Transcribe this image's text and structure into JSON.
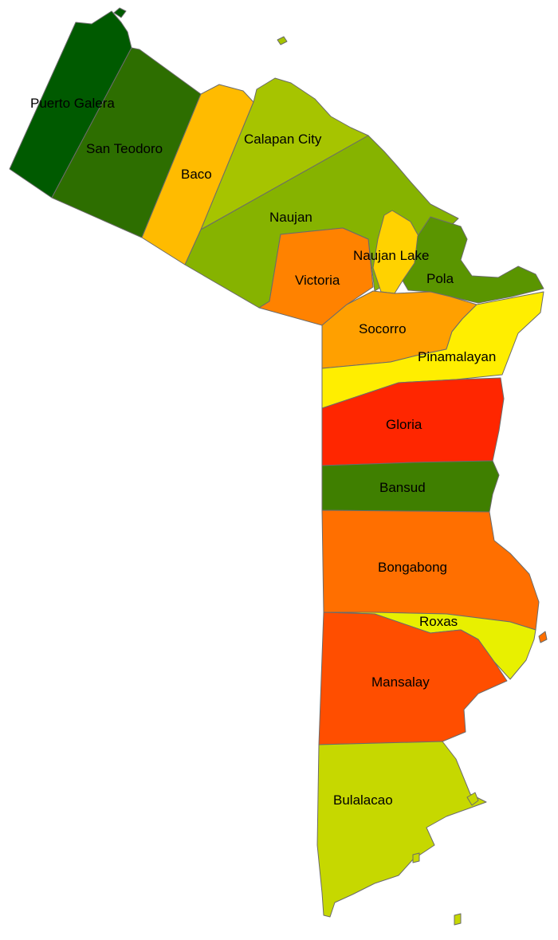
{
  "map": {
    "regions": [
      {
        "id": "puerto-galera",
        "label": "Puerto Galera",
        "color": "#005a00"
      },
      {
        "id": "san-teodoro",
        "label": "San Teodoro",
        "color": "#2d6e00"
      },
      {
        "id": "baco",
        "label": "Baco",
        "color": "#ffbb00"
      },
      {
        "id": "calapan-city",
        "label": "Calapan City",
        "color": "#a6c400"
      },
      {
        "id": "naujan",
        "label": "Naujan",
        "color": "#86b300"
      },
      {
        "id": "naujan-lake",
        "label": "Naujan Lake",
        "color": "#ffd200"
      },
      {
        "id": "pola",
        "label": "Pola",
        "color": "#5a9500"
      },
      {
        "id": "victoria",
        "label": "Victoria",
        "color": "#ff8200"
      },
      {
        "id": "socorro",
        "label": "Socorro",
        "color": "#ffa000"
      },
      {
        "id": "pinamalayan",
        "label": "Pinamalayan",
        "color": "#ffee00"
      },
      {
        "id": "gloria",
        "label": "Gloria",
        "color": "#ff2600"
      },
      {
        "id": "bansud",
        "label": "Bansud",
        "color": "#3f7f00"
      },
      {
        "id": "bongabong",
        "label": "Bongabong",
        "color": "#ff6f00"
      },
      {
        "id": "roxas",
        "label": "Roxas",
        "color": "#e8f000"
      },
      {
        "id": "mansalay",
        "label": "Mansalay",
        "color": "#ff4e00"
      },
      {
        "id": "bulalacao",
        "label": "Bulalacao",
        "color": "#c6d800"
      }
    ],
    "outline_color": "#6b6b6b"
  }
}
